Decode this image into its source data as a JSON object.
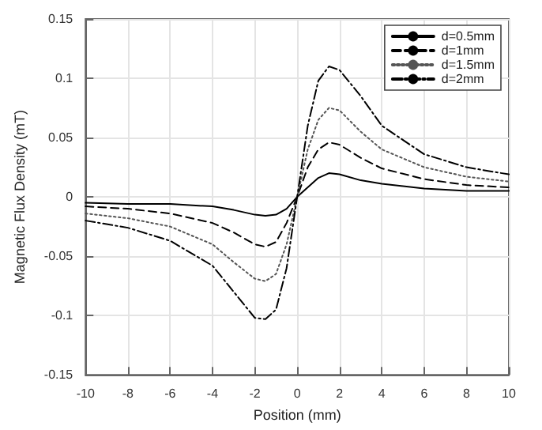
{
  "chart_data": {
    "type": "line",
    "xlabel": "Position (mm)",
    "ylabel": "Magnetic Flux Density (mT)",
    "x": [
      -10,
      -8,
      -6,
      -4,
      -3,
      -2,
      -1.5,
      -1,
      -0.5,
      0,
      0.5,
      1,
      1.5,
      2,
      3,
      4,
      6,
      8,
      10
    ],
    "series": [
      {
        "name": "d=0.5mm",
        "color": "#000000",
        "line_style": "solid",
        "values": [
          -0.005,
          -0.006,
          -0.006,
          -0.008,
          -0.011,
          -0.015,
          -0.016,
          -0.015,
          -0.01,
          0,
          0.008,
          0.016,
          0.02,
          0.019,
          0.014,
          0.011,
          0.007,
          0.005,
          0.005
        ]
      },
      {
        "name": "d=1mm",
        "color": "#000000",
        "line_style": "dashed",
        "values": [
          -0.008,
          -0.01,
          -0.014,
          -0.022,
          -0.03,
          -0.04,
          -0.042,
          -0.038,
          -0.022,
          0,
          0.025,
          0.04,
          0.046,
          0.044,
          0.033,
          0.024,
          0.015,
          0.01,
          0.008
        ]
      },
      {
        "name": "d=1.5mm",
        "color": "#555555",
        "line_style": "dotted",
        "values": [
          -0.014,
          -0.018,
          -0.025,
          -0.04,
          -0.055,
          -0.069,
          -0.071,
          -0.065,
          -0.04,
          0,
          0.04,
          0.065,
          0.075,
          0.073,
          0.055,
          0.04,
          0.025,
          0.017,
          0.013
        ]
      },
      {
        "name": "d=2mm",
        "color": "#000000",
        "line_style": "dashdot",
        "values": [
          -0.02,
          -0.026,
          -0.037,
          -0.058,
          -0.08,
          -0.102,
          -0.103,
          -0.095,
          -0.06,
          0,
          0.06,
          0.098,
          0.11,
          0.107,
          0.085,
          0.06,
          0.036,
          0.025,
          0.019
        ]
      }
    ],
    "xlim": [
      -10,
      10
    ],
    "xticks": [
      -10,
      -8,
      -6,
      -4,
      -2,
      0,
      2,
      4,
      6,
      8,
      10
    ],
    "ylim": [
      -0.15,
      0.15
    ],
    "yticks": [
      -0.15,
      -0.1,
      -0.05,
      0,
      0.05,
      0.1,
      0.15
    ],
    "grid": true,
    "legend": "top right",
    "marker": "none"
  }
}
